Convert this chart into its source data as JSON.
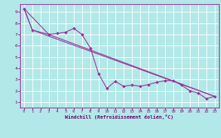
{
  "xlabel": "Windchill (Refroidissement éolien,°C)",
  "background_color": "#b2e8e8",
  "grid_color": "#ffffff",
  "line_color": "#993399",
  "spine_color": "#993399",
  "tick_color": "#660066",
  "xlim": [
    -0.5,
    23.5
  ],
  "ylim": [
    0.5,
    9.7
  ],
  "xticks": [
    0,
    1,
    2,
    3,
    4,
    5,
    6,
    7,
    8,
    9,
    10,
    11,
    12,
    13,
    14,
    15,
    16,
    17,
    18,
    19,
    20,
    21,
    22,
    23
  ],
  "yticks": [
    1,
    2,
    3,
    4,
    5,
    6,
    7,
    8,
    9
  ],
  "series1_x": [
    0,
    1,
    3,
    4,
    5,
    6,
    7,
    8,
    9,
    10,
    11,
    12,
    13,
    14,
    15,
    16,
    17,
    18,
    19,
    20,
    21,
    22,
    23
  ],
  "series1_y": [
    9.3,
    7.4,
    7.0,
    7.1,
    7.2,
    7.55,
    7.0,
    5.8,
    3.5,
    2.2,
    2.85,
    2.4,
    2.5,
    2.4,
    2.55,
    2.75,
    2.9,
    2.9,
    2.5,
    2.0,
    1.8,
    1.3,
    1.5
  ],
  "trend1_x": [
    0,
    1,
    3,
    23
  ],
  "trend1_y": [
    9.3,
    7.4,
    6.85,
    1.5
  ],
  "trend2_x": [
    0,
    3,
    23
  ],
  "trend2_y": [
    9.3,
    7.0,
    1.5
  ]
}
